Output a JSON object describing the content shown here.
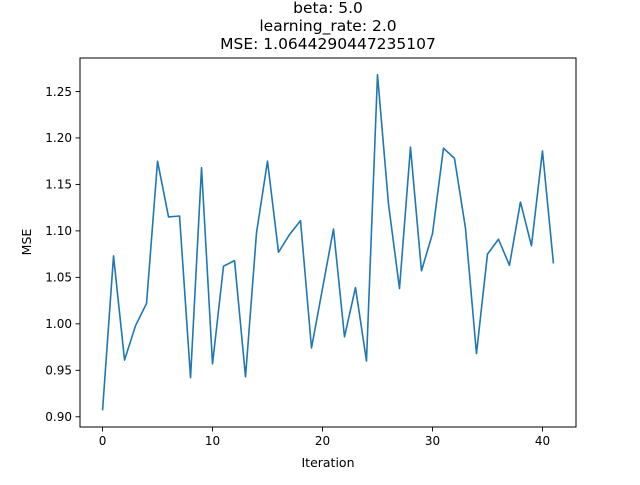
{
  "chart_data": {
    "type": "line",
    "title_lines": [
      "beta: 5.0",
      "learning_rate: 2.0",
      "MSE: 1.0644290447235107"
    ],
    "xlabel": "Iteration",
    "ylabel": "MSE",
    "xlim": [
      -2.05,
      43.05
    ],
    "ylim": [
      0.889,
      1.286
    ],
    "xticks": [
      0,
      10,
      20,
      30,
      40
    ],
    "yticks": [
      0.9,
      0.95,
      1.0,
      1.05,
      1.1,
      1.15,
      1.2,
      1.25
    ],
    "ytick_labels": [
      "0.90",
      "0.95",
      "1.00",
      "1.05",
      "1.10",
      "1.15",
      "1.20",
      "1.25"
    ],
    "grid": false,
    "line_color": "#1f77b4",
    "series": [
      {
        "x": [
          0,
          1,
          2,
          3,
          4,
          5,
          6,
          7,
          8,
          9,
          10,
          11,
          12,
          13,
          14,
          15,
          16,
          17,
          18,
          19,
          20,
          21,
          22,
          23,
          24,
          25,
          26,
          27,
          28,
          29,
          30,
          31,
          32,
          33,
          34,
          35,
          36,
          37,
          38,
          39,
          40,
          41
        ],
        "values": [
          0.907,
          1.073,
          0.961,
          0.998,
          1.022,
          1.175,
          1.115,
          1.116,
          0.942,
          1.168,
          0.957,
          1.062,
          1.068,
          0.943,
          1.098,
          1.175,
          1.077,
          1.096,
          1.111,
          0.974,
          1.038,
          1.102,
          0.986,
          1.039,
          0.96,
          1.268,
          1.129,
          1.038,
          1.19,
          1.057,
          1.097,
          1.189,
          1.178,
          1.103,
          0.968,
          1.075,
          1.091,
          1.063,
          1.131,
          1.084,
          1.186,
          1.065
        ]
      }
    ]
  }
}
